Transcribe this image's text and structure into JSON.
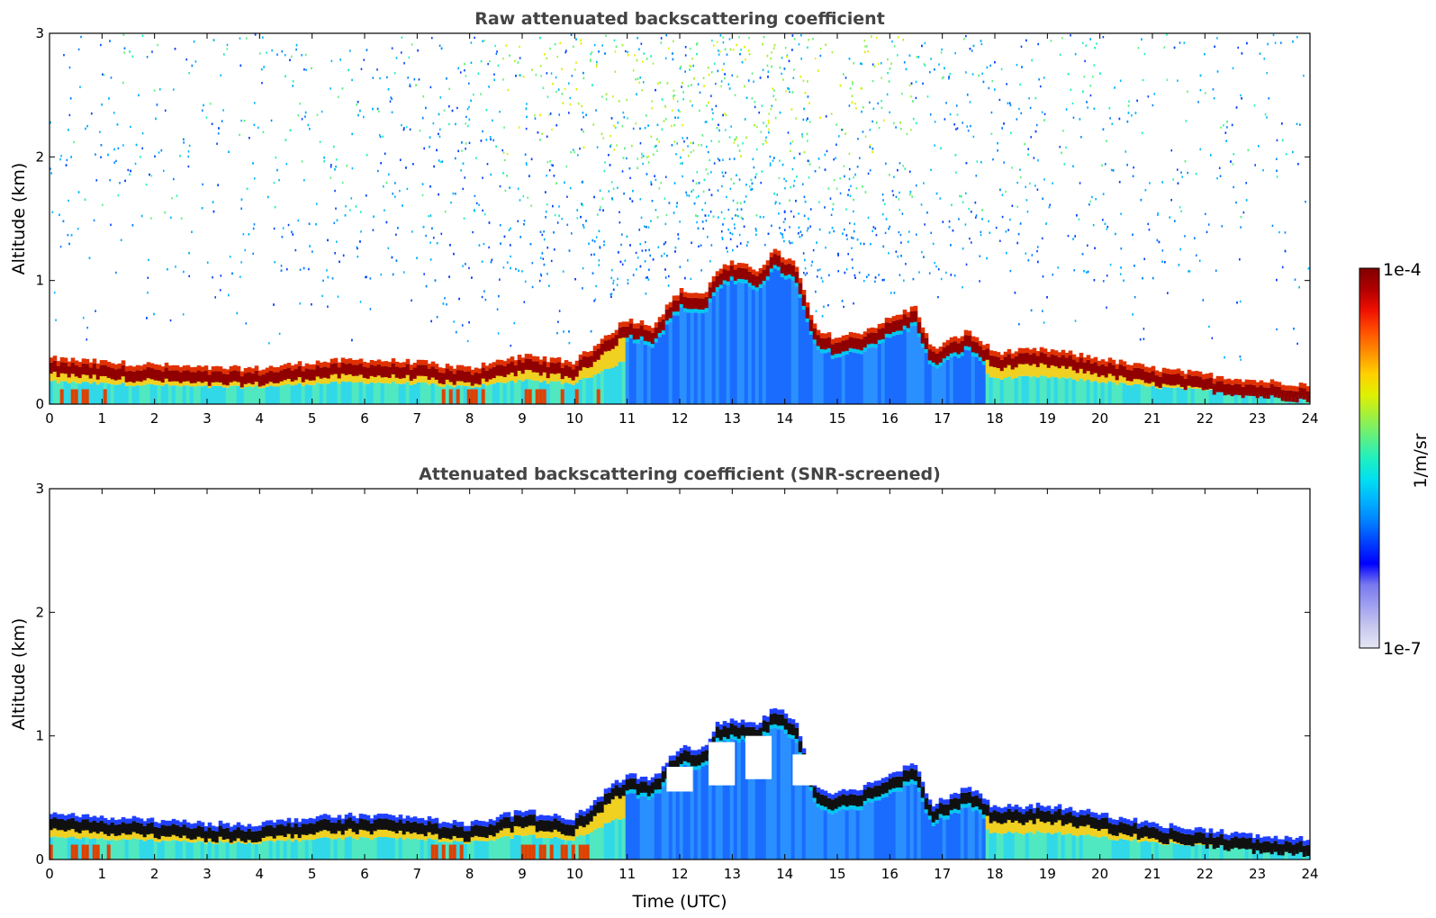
{
  "chart_data": [
    {
      "type": "heatmap",
      "title": "Raw attenuated backscattering coefficient",
      "xlabel": "",
      "ylabel": "Altitude (km)",
      "xlim": [
        0,
        24
      ],
      "ylim": [
        0,
        3
      ],
      "xticks": [
        "0",
        "1",
        "2",
        "3",
        "4",
        "5",
        "6",
        "7",
        "8",
        "9",
        "10",
        "11",
        "12",
        "13",
        "14",
        "15",
        "16",
        "17",
        "18",
        "19",
        "20",
        "21",
        "22",
        "23",
        "24"
      ],
      "yticks": [
        "0",
        "1",
        "2",
        "3"
      ],
      "screened": false,
      "layer_top_km": [
        [
          0,
          0.33
        ],
        [
          1,
          0.3
        ],
        [
          2,
          0.28
        ],
        [
          3,
          0.25
        ],
        [
          4,
          0.25
        ],
        [
          5,
          0.3
        ],
        [
          6,
          0.32
        ],
        [
          7,
          0.3
        ],
        [
          8,
          0.25
        ],
        [
          9,
          0.35
        ],
        [
          10,
          0.3
        ],
        [
          11,
          0.65
        ],
        [
          11.5,
          0.6
        ],
        [
          12,
          0.88
        ],
        [
          12.5,
          0.85
        ],
        [
          12.7,
          1.05
        ],
        [
          13,
          1.1
        ],
        [
          13.5,
          1.05
        ],
        [
          13.8,
          1.2
        ],
        [
          14.2,
          1.1
        ],
        [
          14.6,
          0.55
        ],
        [
          15,
          0.5
        ],
        [
          15.5,
          0.55
        ],
        [
          16,
          0.65
        ],
        [
          16.5,
          0.75
        ],
        [
          16.8,
          0.4
        ],
        [
          17.5,
          0.55
        ],
        [
          18,
          0.38
        ],
        [
          19,
          0.4
        ],
        [
          20,
          0.33
        ],
        [
          21,
          0.25
        ],
        [
          22,
          0.2
        ],
        [
          23,
          0.15
        ],
        [
          24,
          0.12
        ]
      ]
    },
    {
      "type": "heatmap",
      "title": "Attenuated backscattering coefficient (SNR-screened)",
      "xlabel": "Time (UTC)",
      "ylabel": "Altitude (km)",
      "xlim": [
        0,
        24
      ],
      "ylim": [
        0,
        3
      ],
      "xticks": [
        "0",
        "1",
        "2",
        "3",
        "4",
        "5",
        "6",
        "7",
        "8",
        "9",
        "10",
        "11",
        "12",
        "13",
        "14",
        "15",
        "16",
        "17",
        "18",
        "19",
        "20",
        "21",
        "22",
        "23",
        "24"
      ],
      "yticks": [
        "0",
        "1",
        "2",
        "3"
      ],
      "screened": true,
      "layer_top_km": [
        [
          0,
          0.33
        ],
        [
          1,
          0.3
        ],
        [
          2,
          0.28
        ],
        [
          3,
          0.25
        ],
        [
          4,
          0.25
        ],
        [
          5,
          0.3
        ],
        [
          6,
          0.32
        ],
        [
          7,
          0.3
        ],
        [
          8,
          0.25
        ],
        [
          9,
          0.35
        ],
        [
          10,
          0.3
        ],
        [
          11,
          0.65
        ],
        [
          11.5,
          0.6
        ],
        [
          12,
          0.88
        ],
        [
          12.5,
          0.85
        ],
        [
          12.7,
          1.05
        ],
        [
          13,
          1.1
        ],
        [
          13.5,
          1.05
        ],
        [
          13.8,
          1.2
        ],
        [
          14.2,
          1.1
        ],
        [
          14.6,
          0.55
        ],
        [
          15,
          0.5
        ],
        [
          15.5,
          0.55
        ],
        [
          16,
          0.65
        ],
        [
          16.5,
          0.75
        ],
        [
          16.8,
          0.4
        ],
        [
          17.5,
          0.55
        ],
        [
          18,
          0.38
        ],
        [
          19,
          0.4
        ],
        [
          20,
          0.33
        ],
        [
          21,
          0.25
        ],
        [
          22,
          0.2
        ],
        [
          23,
          0.15
        ],
        [
          24,
          0.12
        ]
      ]
    }
  ],
  "colorbar": {
    "max_label": "1e-4",
    "min_label": "1e-7",
    "unit_label": "1/m/sr",
    "colors": [
      "#e6e6f5",
      "#c8c8ef",
      "#a0a0f0",
      "#7878f0",
      "#0000ff",
      "#0040ff",
      "#0080ff",
      "#00b4ff",
      "#00e0f0",
      "#20f0c0",
      "#60f080",
      "#a0f040",
      "#e0f000",
      "#ffd000",
      "#ff9000",
      "#ff5000",
      "#f01000",
      "#b00000",
      "#800000"
    ]
  }
}
